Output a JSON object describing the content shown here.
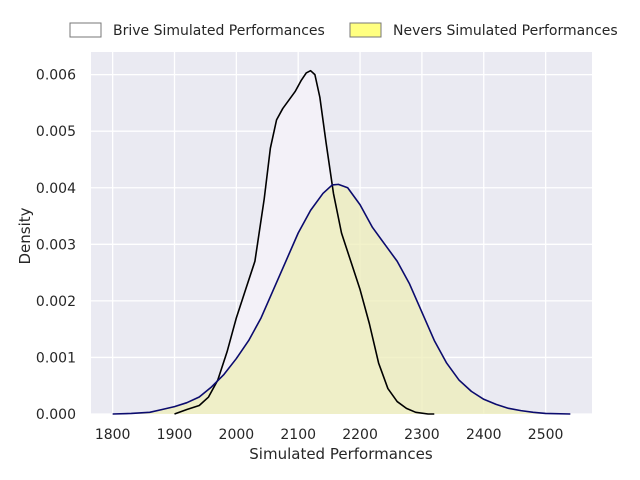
{
  "chart_data": {
    "type": "area",
    "xlabel": "Simulated Performances",
    "ylabel": "Density",
    "xlim": [
      1765,
      2575
    ],
    "ylim": [
      0,
      0.0064
    ],
    "x_ticks": [
      1800,
      1900,
      2000,
      2100,
      2200,
      2300,
      2400,
      2500
    ],
    "y_ticks": [
      "0.000",
      "0.001",
      "0.002",
      "0.003",
      "0.004",
      "0.005",
      "0.006"
    ],
    "grid": true,
    "legend_position": "top",
    "background_color": "#eaeaf2",
    "series": [
      {
        "name": "Brive Simulated Performances",
        "line_color": "#000000",
        "fill_color": "#f3f1f8",
        "legend_fill": "#ffffff",
        "points": [
          [
            1900,
            0.0
          ],
          [
            1920,
            8e-05
          ],
          [
            1940,
            0.00015
          ],
          [
            1955,
            0.0003
          ],
          [
            1970,
            0.0006
          ],
          [
            1985,
            0.0011
          ],
          [
            2000,
            0.0017
          ],
          [
            2015,
            0.0022
          ],
          [
            2030,
            0.0027
          ],
          [
            2045,
            0.0038
          ],
          [
            2055,
            0.0047
          ],
          [
            2065,
            0.0052
          ],
          [
            2075,
            0.0054
          ],
          [
            2085,
            0.00555
          ],
          [
            2095,
            0.0057
          ],
          [
            2105,
            0.0059
          ],
          [
            2113,
            0.00603
          ],
          [
            2120,
            0.00607
          ],
          [
            2127,
            0.006
          ],
          [
            2135,
            0.0056
          ],
          [
            2145,
            0.0048
          ],
          [
            2157,
            0.0039
          ],
          [
            2170,
            0.0032
          ],
          [
            2185,
            0.0027
          ],
          [
            2200,
            0.0022
          ],
          [
            2215,
            0.0016
          ],
          [
            2230,
            0.0009
          ],
          [
            2245,
            0.00045
          ],
          [
            2260,
            0.00022
          ],
          [
            2275,
            0.0001
          ],
          [
            2290,
            3e-05
          ],
          [
            2310,
            0.0
          ],
          [
            2320,
            0.0
          ]
        ]
      },
      {
        "name": "Nevers Simulated Performances",
        "line_color": "#0b0b6e",
        "fill_color": "#eeeeb8",
        "fill_opacity": 0.75,
        "legend_fill": "#ffff80",
        "points": [
          [
            1800,
            0.0
          ],
          [
            1830,
            1e-05
          ],
          [
            1860,
            3e-05
          ],
          [
            1880,
            8e-05
          ],
          [
            1900,
            0.00013
          ],
          [
            1920,
            0.0002
          ],
          [
            1940,
            0.0003
          ],
          [
            1960,
            0.00048
          ],
          [
            1980,
            0.0007
          ],
          [
            2000,
            0.00098
          ],
          [
            2020,
            0.0013
          ],
          [
            2040,
            0.0017
          ],
          [
            2060,
            0.0022
          ],
          [
            2080,
            0.0027
          ],
          [
            2100,
            0.0032
          ],
          [
            2120,
            0.0036
          ],
          [
            2140,
            0.0039
          ],
          [
            2155,
            0.00405
          ],
          [
            2165,
            0.00406
          ],
          [
            2180,
            0.004
          ],
          [
            2200,
            0.0037
          ],
          [
            2220,
            0.0033
          ],
          [
            2240,
            0.003
          ],
          [
            2260,
            0.0027
          ],
          [
            2280,
            0.0023
          ],
          [
            2300,
            0.0018
          ],
          [
            2320,
            0.0013
          ],
          [
            2340,
            0.0009
          ],
          [
            2360,
            0.0006
          ],
          [
            2380,
            0.0004
          ],
          [
            2400,
            0.00026
          ],
          [
            2420,
            0.00017
          ],
          [
            2440,
            0.0001
          ],
          [
            2460,
            6e-05
          ],
          [
            2480,
            3e-05
          ],
          [
            2500,
            1e-05
          ],
          [
            2540,
            0.0
          ]
        ]
      }
    ]
  }
}
